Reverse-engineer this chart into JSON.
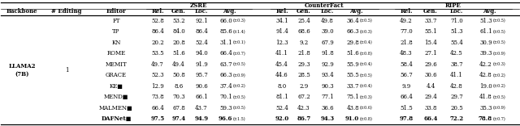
{
  "backbone": "LLAMA2\n(7B)",
  "n_editing": "1",
  "editors": [
    "FT",
    "TP",
    "KN",
    "ROME",
    "MEMIT",
    "GRACE",
    "KE■",
    "MEND■",
    "MALMEN■",
    "DAFNet■"
  ],
  "zsre": {
    "rel": [
      52.8,
      86.4,
      20.2,
      53.5,
      49.7,
      52.3,
      12.9,
      73.8,
      66.4,
      97.5
    ],
    "gen": [
      53.2,
      84.0,
      20.8,
      51.6,
      49.4,
      50.8,
      8.6,
      70.3,
      67.8,
      97.4
    ],
    "loc": [
      92.1,
      86.4,
      52.4,
      94.0,
      91.9,
      95.7,
      90.6,
      66.1,
      43.7,
      94.9
    ],
    "avg": [
      "66.0",
      "85.6",
      "31.1",
      "66.4",
      "63.7",
      "66.3",
      "37.4",
      "70.1",
      "59.3",
      "96.6"
    ],
    "avg_pm": [
      "±0.3",
      "±1.4",
      "±0.1",
      "±0.7",
      "±0.5",
      "±0.9",
      "±0.2",
      "±0.5",
      "±0.5",
      "±1.5"
    ]
  },
  "counterfact": {
    "rel": [
      34.1,
      91.4,
      12.3,
      41.1,
      45.4,
      44.6,
      8.0,
      81.1,
      52.4,
      92.0
    ],
    "gen": [
      25.4,
      68.6,
      9.2,
      21.8,
      29.3,
      28.5,
      2.9,
      67.2,
      42.3,
      86.7
    ],
    "loc": [
      49.8,
      39.0,
      67.9,
      91.8,
      92.9,
      93.4,
      90.3,
      77.1,
      36.6,
      94.3
    ],
    "avg": [
      "36.4",
      "66.3",
      "29.8",
      "51.6",
      "55.9",
      "55.5",
      "33.7",
      "75.1",
      "43.8",
      "91.0"
    ],
    "avg_pm": [
      "±0.5",
      "±0.3",
      "±0.4",
      "±0.8",
      "±0.4",
      "±0.5",
      "±0.4",
      "±0.3",
      "±0.6",
      "±0.8"
    ]
  },
  "ripe": {
    "rel": [
      49.2,
      77.0,
      21.8,
      48.3,
      58.4,
      56.7,
      9.9,
      66.4,
      51.5,
      97.8
    ],
    "gen": [
      33.7,
      55.1,
      15.4,
      27.1,
      29.6,
      30.6,
      4.4,
      29.4,
      33.8,
      66.4
    ],
    "loc": [
      71.0,
      51.3,
      55.4,
      42.5,
      38.7,
      41.1,
      42.8,
      29.7,
      20.5,
      72.2
    ],
    "avg": [
      "51.3",
      "61.1",
      "30.9",
      "39.3",
      "42.2",
      "42.8",
      "19.0",
      "41.8",
      "35.3",
      "78.8"
    ],
    "avg_pm": [
      "±0.5",
      "±0.5",
      "±0.5",
      "±0.9",
      "±0.3",
      "±0.2",
      "±0.2",
      "±0.5",
      "±0.9",
      "±0.7"
    ]
  },
  "bold_row": 9,
  "fig_width": 6.4,
  "fig_height": 1.56,
  "dpi": 100
}
